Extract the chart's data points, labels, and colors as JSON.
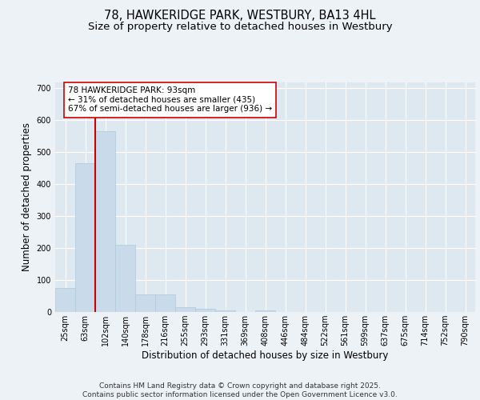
{
  "title_line1": "78, HAWKERIDGE PARK, WESTBURY, BA13 4HL",
  "title_line2": "Size of property relative to detached houses in Westbury",
  "xlabel": "Distribution of detached houses by size in Westbury",
  "ylabel": "Number of detached properties",
  "bar_color": "#c9daea",
  "bar_edge_color": "#b0c8dc",
  "vline_color": "#cc0000",
  "vline_x_idx": 2,
  "annotation_text": "78 HAWKERIDGE PARK: 93sqm\n← 31% of detached houses are smaller (435)\n67% of semi-detached houses are larger (936) →",
  "annotation_box_color": "#ffffff",
  "annotation_box_edge": "#cc0000",
  "categories": [
    "25sqm",
    "63sqm",
    "102sqm",
    "140sqm",
    "178sqm",
    "216sqm",
    "255sqm",
    "293sqm",
    "331sqm",
    "369sqm",
    "408sqm",
    "446sqm",
    "484sqm",
    "522sqm",
    "561sqm",
    "599sqm",
    "637sqm",
    "675sqm",
    "714sqm",
    "752sqm",
    "790sqm"
  ],
  "values": [
    75,
    465,
    565,
    210,
    55,
    55,
    15,
    10,
    5,
    0,
    5,
    0,
    0,
    0,
    0,
    0,
    0,
    0,
    0,
    0,
    0
  ],
  "ylim": [
    0,
    720
  ],
  "yticks": [
    0,
    100,
    200,
    300,
    400,
    500,
    600,
    700
  ],
  "background_color": "#edf2f7",
  "plot_background_color": "#dde8f0",
  "grid_color": "#ffffff",
  "footer_text": "Contains HM Land Registry data © Crown copyright and database right 2025.\nContains public sector information licensed under the Open Government Licence v3.0.",
  "title_fontsize": 10.5,
  "subtitle_fontsize": 9.5,
  "axis_label_fontsize": 8.5,
  "tick_fontsize": 7,
  "footer_fontsize": 6.5,
  "annot_fontsize": 7.5
}
